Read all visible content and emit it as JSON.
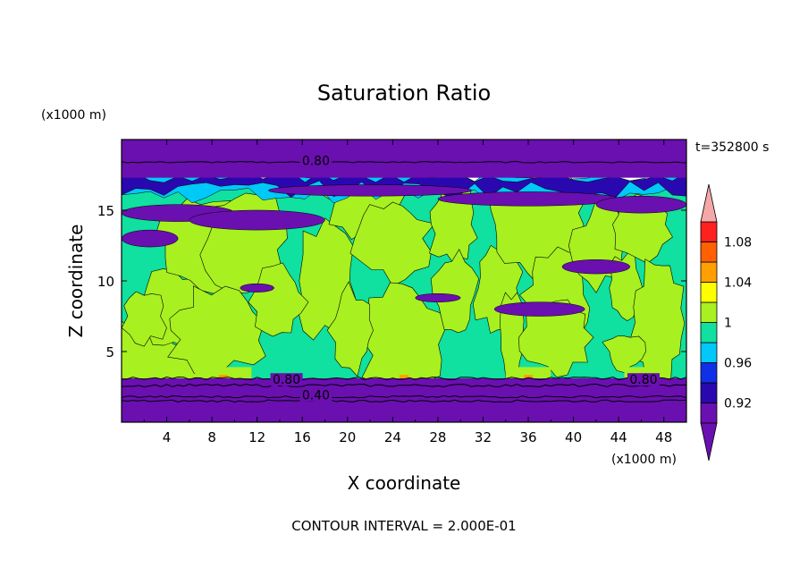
{
  "chart_data": {
    "type": "heatmap",
    "title": "Saturation Ratio",
    "time_label": "t=352800 s",
    "xlabel": "X coordinate",
    "ylabel": "Z coordinate",
    "x_units": "(x1000 m)",
    "y_units": "(x1000 m)",
    "xlim": [
      0,
      50
    ],
    "ylim": [
      0,
      20
    ],
    "x_ticks": [
      4,
      8,
      12,
      16,
      20,
      24,
      28,
      32,
      36,
      40,
      44,
      48
    ],
    "y_ticks": [
      5,
      10,
      15
    ],
    "contour_interval_text": "CONTOUR INTERVAL = 2.000E-01",
    "contour_labels": [
      {
        "text": "0.80",
        "x": 17.2,
        "z": 18.4
      },
      {
        "text": "0.80",
        "x": 14.6,
        "z": 2.9
      },
      {
        "text": "0.80",
        "x": 46.2,
        "z": 2.9
      },
      {
        "text": "0.40",
        "x": 17.2,
        "z": 1.8
      }
    ],
    "colorbar": {
      "levels": [
        0.9,
        0.92,
        0.94,
        0.96,
        0.98,
        1.0,
        1.02,
        1.04,
        1.06,
        1.08,
        1.1
      ],
      "tick_labels": [
        "0.92",
        "0.96",
        "1",
        "1.04",
        "1.08"
      ],
      "tick_values": [
        0.92,
        0.96,
        1.0,
        1.04,
        1.08
      ],
      "colors": [
        "#6a0fb0",
        "#2a08b0",
        "#1030e8",
        "#00c8f8",
        "#10e0a0",
        "#a8f020",
        "#ffff00",
        "#ffa000",
        "#ff6000",
        "#ff2020"
      ],
      "under_color": "#6a0fb0",
      "over_color": "#f5a8a8"
    },
    "regions": {
      "surface_layer": {
        "z": [
          0,
          3.1
        ],
        "value": 0.4
      },
      "cloud_layer": {
        "z": [
          3.1,
          17
        ],
        "dominant_values": [
          0.98,
          1.0
        ]
      },
      "moist_top_layer": {
        "z": [
          12,
          17.3
        ],
        "values": [
          0.92,
          0.96
        ]
      },
      "upper_layer": {
        "z": [
          17.3,
          20
        ],
        "value": 0.8
      }
    }
  }
}
